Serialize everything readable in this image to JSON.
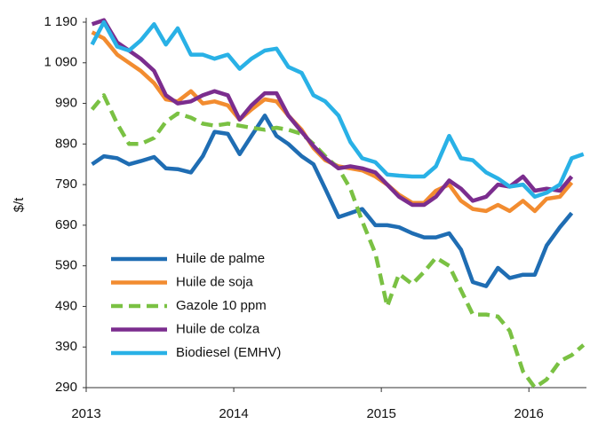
{
  "chart_data": {
    "type": "line",
    "ylabel": "$/t",
    "x": [
      2013.04,
      2013.12,
      2013.21,
      2013.29,
      2013.37,
      2013.46,
      2013.54,
      2013.62,
      2013.71,
      2013.79,
      2013.87,
      2013.96,
      2014.04,
      2014.12,
      2014.21,
      2014.29,
      2014.37,
      2014.46,
      2014.54,
      2014.62,
      2014.71,
      2014.79,
      2014.87,
      2014.96,
      2015.04,
      2015.12,
      2015.21,
      2015.29,
      2015.37,
      2015.46,
      2015.54,
      2015.62,
      2015.71,
      2015.79,
      2015.87,
      2015.96,
      2016.04,
      2016.12,
      2016.21,
      2016.29,
      2016.37
    ],
    "series": [
      {
        "name": "Huile de palme",
        "color": "#1f6db3",
        "dash": false,
        "values": [
          840,
          860,
          855,
          840,
          848,
          858,
          830,
          828,
          820,
          860,
          920,
          915,
          865,
          910,
          960,
          910,
          890,
          860,
          840,
          780,
          710,
          720,
          730,
          690,
          690,
          685,
          670,
          660,
          660,
          670,
          630,
          550,
          540,
          585,
          560,
          568,
          568,
          640,
          685,
          720,
          null
        ]
      },
      {
        "name": "Huile de soja",
        "color": "#f28c30",
        "dash": false,
        "values": [
          1165,
          1150,
          1110,
          1090,
          1070,
          1040,
          1000,
          995,
          1020,
          990,
          995,
          985,
          950,
          975,
          1000,
          995,
          960,
          925,
          880,
          850,
          835,
          830,
          825,
          810,
          790,
          765,
          745,
          745,
          775,
          790,
          750,
          730,
          725,
          740,
          725,
          750,
          725,
          755,
          760,
          795,
          null
        ]
      },
      {
        "name": "Gazole 10 ppm",
        "color": "#7ac143",
        "dash": true,
        "values": [
          975,
          1010,
          940,
          890,
          890,
          905,
          945,
          965,
          955,
          940,
          935,
          940,
          935,
          930,
          925,
          930,
          925,
          915,
          890,
          860,
          830,
          780,
          700,
          620,
          490,
          570,
          545,
          575,
          610,
          590,
          530,
          470,
          470,
          465,
          430,
          330,
          290,
          310,
          355,
          370,
          395
        ]
      },
      {
        "name": "Huile de colza",
        "color": "#7b2d8e",
        "dash": false,
        "values": [
          1185,
          1195,
          1140,
          1120,
          1100,
          1070,
          1010,
          990,
          995,
          1010,
          1020,
          1010,
          950,
          985,
          1015,
          1015,
          960,
          920,
          885,
          855,
          830,
          835,
          830,
          820,
          790,
          760,
          740,
          740,
          760,
          800,
          780,
          750,
          760,
          790,
          785,
          810,
          775,
          780,
          775,
          810,
          null
        ]
      },
      {
        "name": "Biodiesel (EMHV)",
        "color": "#29b1e6",
        "dash": false,
        "values": [
          1135,
          1190,
          1130,
          1120,
          1145,
          1185,
          1135,
          1175,
          1110,
          1110,
          1100,
          1110,
          1075,
          1100,
          1120,
          1125,
          1080,
          1065,
          1010,
          995,
          960,
          895,
          855,
          845,
          815,
          812,
          810,
          810,
          835,
          910,
          855,
          850,
          820,
          805,
          785,
          790,
          760,
          770,
          790,
          855,
          865
        ]
      }
    ],
    "xlim": [
      2013,
      2016.39
    ],
    "xticks": [
      2013,
      2014,
      2015,
      2016
    ],
    "ylim": [
      290,
      1190
    ],
    "yticks": [
      290,
      390,
      490,
      590,
      690,
      790,
      890,
      990,
      {
        "value": 1090,
        "label": "1 090"
      },
      {
        "value": 1190,
        "label": "1 190"
      }
    ],
    "legend": "lower left"
  }
}
